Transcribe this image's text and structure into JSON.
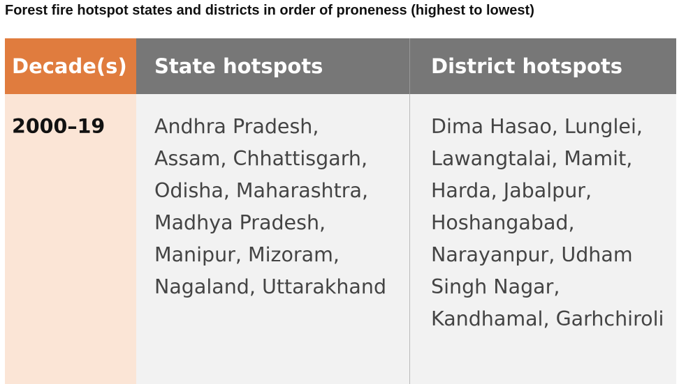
{
  "title": "Forest fire hotspot states and districts in order of proneness (highest to lowest)",
  "table": {
    "header": [
      "Decade(s)",
      "State hotspots",
      "District hotspots"
    ],
    "rows": [
      [
        "2000–19",
        "Andhra Pradesh, Assam, Chhattisgarh, Odisha, Maharashtra, Madhya Pradesh, Manipur, Mizoram, Nagaland, Uttarakhand",
        "Dima Hasao, Lunglei, Lawangtalai, Mamit, Harda, Jabalpur, Hoshangabad, Narayanpur, Udham Singh Nagar, Kandhamal, Garhchiroli"
      ]
    ]
  }
}
